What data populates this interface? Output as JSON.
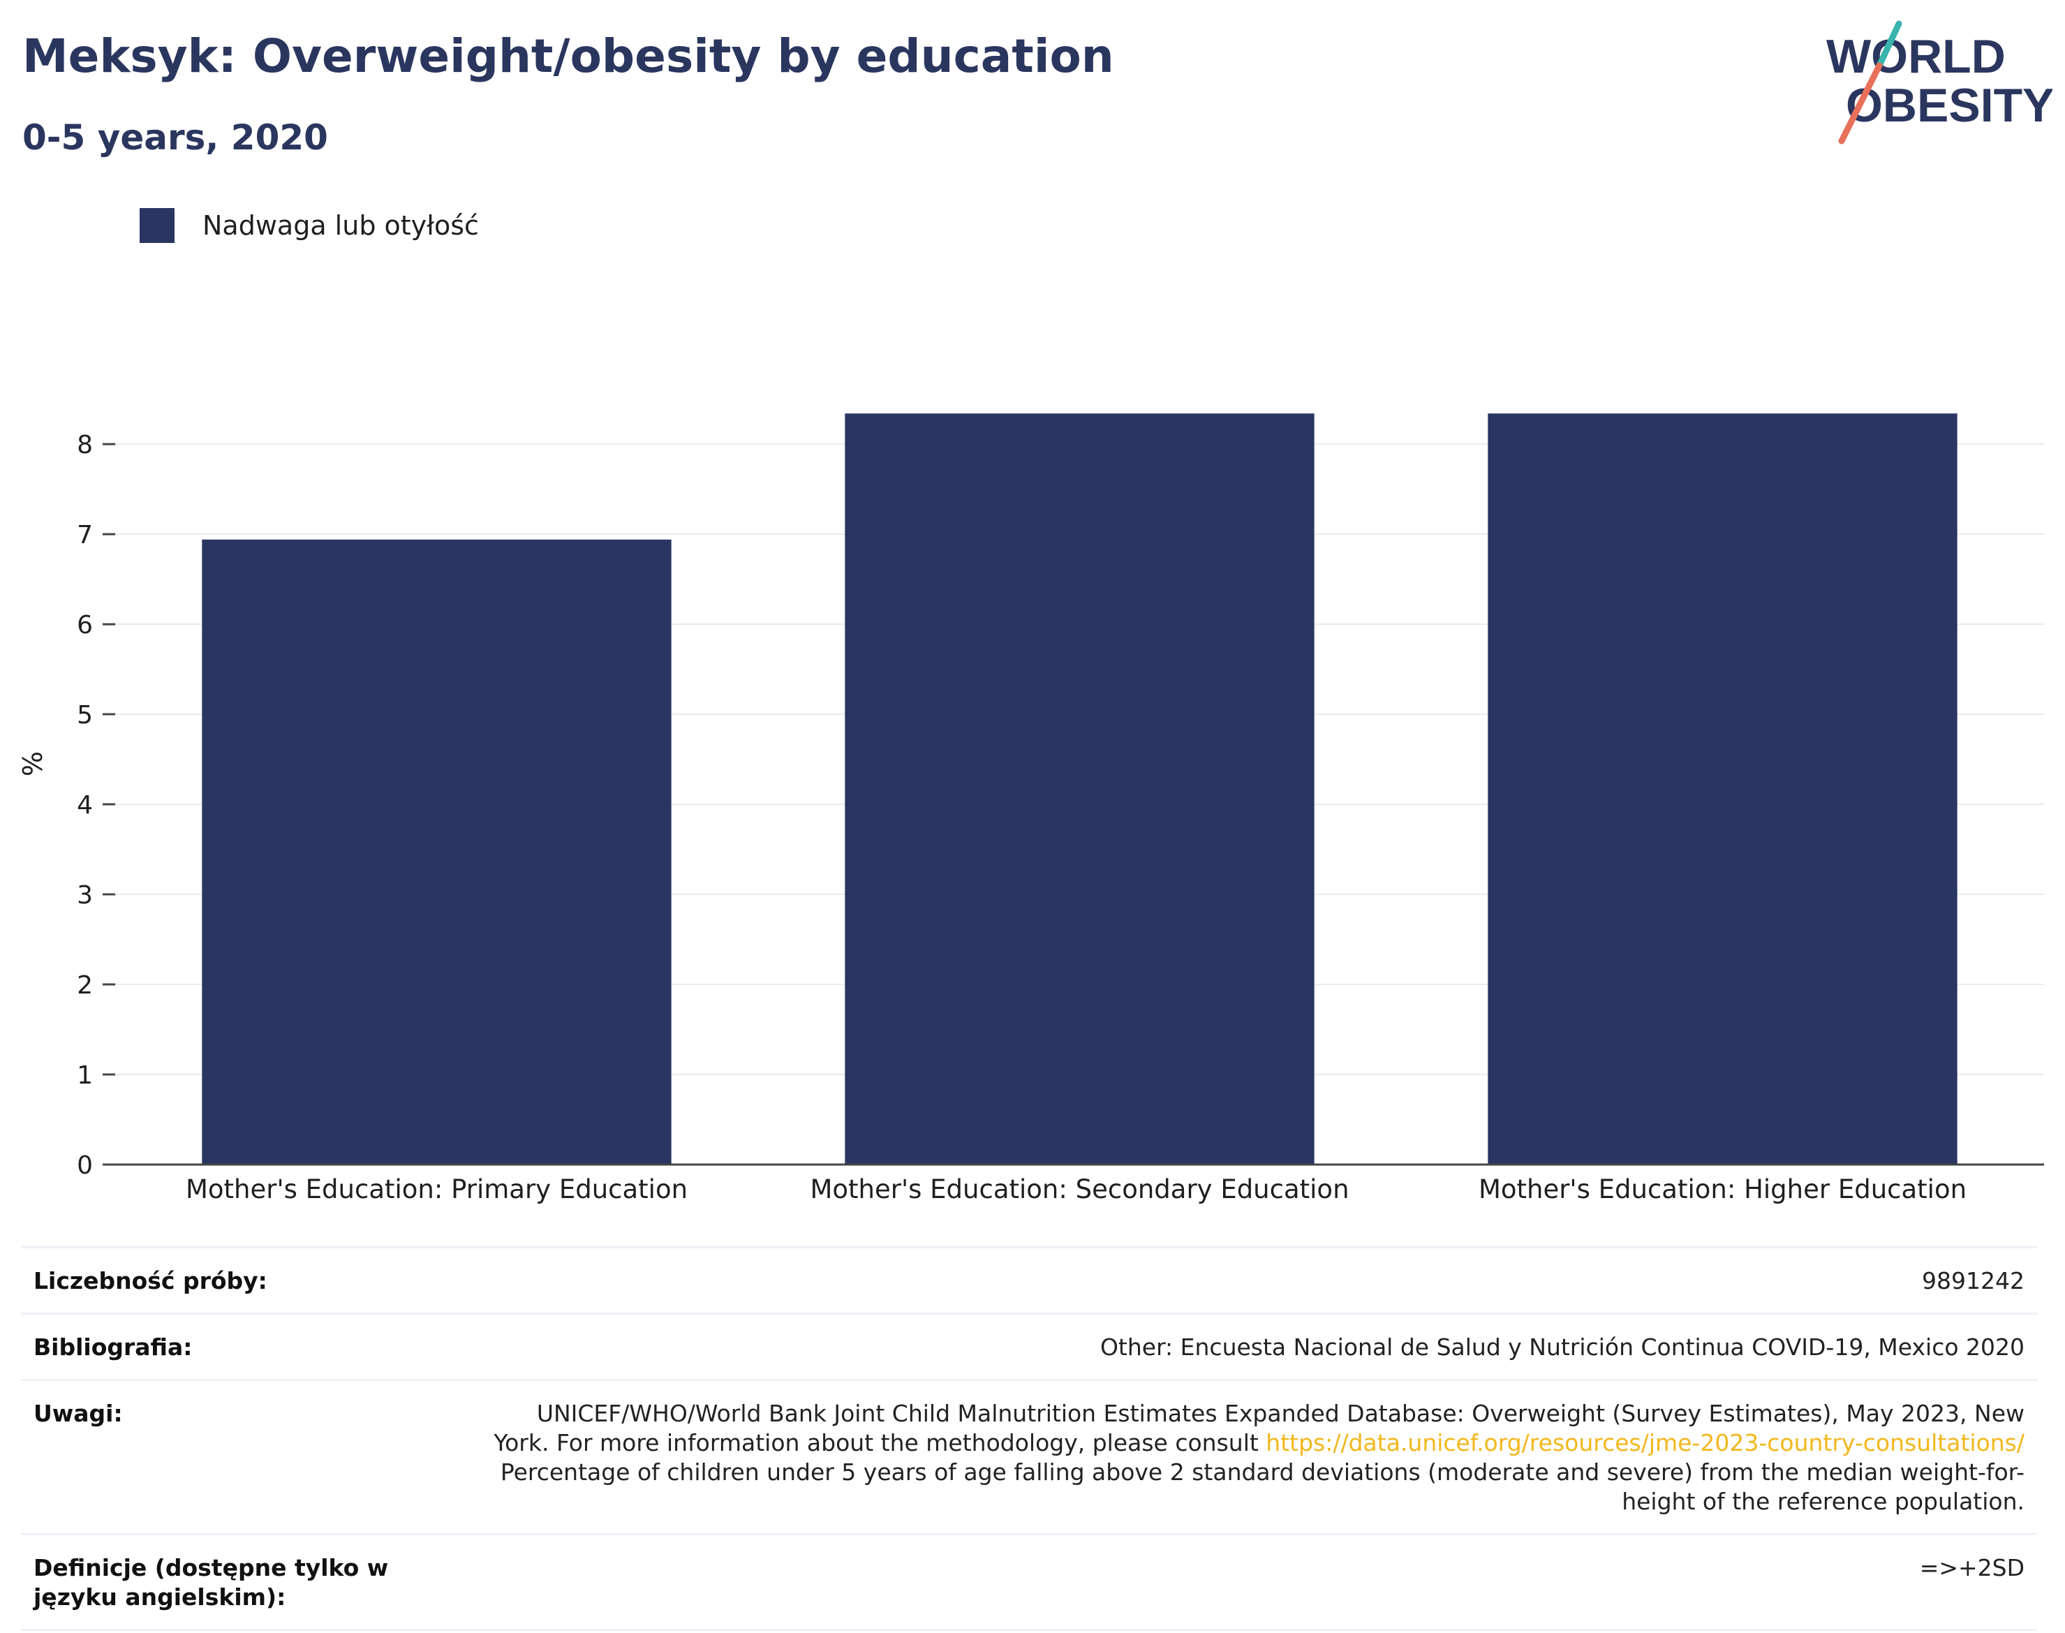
{
  "header": {
    "title": "Meksyk: Overweight/obesity by education",
    "subtitle": "0-5 years, 2020"
  },
  "logo": {
    "line1": "WORLD",
    "line2": "OBESITY",
    "colors": {
      "text": "#2b365f",
      "slash_top": "#39b4ae",
      "slash_bottom": "#e8705a"
    }
  },
  "legend": {
    "label": "Nadwaga lub otyłość",
    "color": "#2a3661"
  },
  "chart_data": {
    "type": "bar",
    "categories": [
      "Mother's Education: Primary Education",
      "Mother's Education: Secondary Education",
      "Mother's Education: Higher Education"
    ],
    "series": [
      {
        "name": "Nadwaga lub otyłość",
        "values": [
          6.94,
          8.34,
          8.34
        ],
        "color": "#2a3661"
      }
    ],
    "ylabel": "%",
    "ylim": [
      0,
      8.9
    ],
    "yticks": [
      0,
      1,
      2,
      3,
      4,
      5,
      6,
      7,
      8
    ],
    "grid": true,
    "legend_position": "top-left"
  },
  "meta": {
    "rows": [
      {
        "key": "Liczebność próby:",
        "value": "9891242"
      },
      {
        "key": "Bibliografia:",
        "value": "Other: Encuesta Nacional de Salud y Nutrición Continua COVID-19, Mexico 2020"
      },
      {
        "key": "Uwagi:",
        "value_pre": "UNICEF/WHO/World Bank Joint Child Malnutrition Estimates Expanded Database: Overweight (Survey Estimates), May 2023, New York. For more information about the methodology, please consult ",
        "link": "https://data.unicef.org/resources/jme-2023-country-consultations/",
        "value_post": " Percentage of children under 5 years of age falling above 2 standard deviations (moderate and severe) from the median weight-for-height of the reference population."
      },
      {
        "key": "Definicje (dostępne tylko w języku angielskim):",
        "value": "=>+2SD"
      }
    ]
  }
}
